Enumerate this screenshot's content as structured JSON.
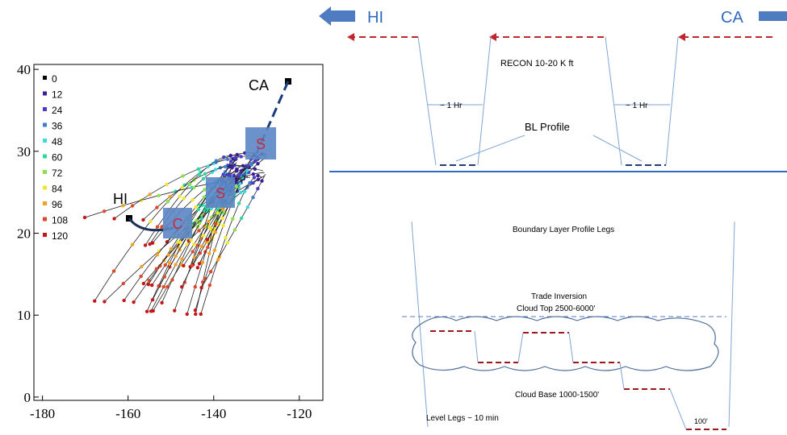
{
  "trajectory_plot": {
    "xlim": [
      -182,
      -114.5
    ],
    "ylim": [
      -0.4,
      40.6
    ],
    "xticks": [
      -180,
      -160,
      -140,
      -120
    ],
    "yticks": [
      0,
      10,
      20,
      30,
      40
    ],
    "legend": [
      {
        "label": "0",
        "color": "#000000"
      },
      {
        "label": "12",
        "color": "#3a1e9a"
      },
      {
        "label": "24",
        "color": "#4b3cc8"
      },
      {
        "label": "36",
        "color": "#3f7fd0"
      },
      {
        "label": "48",
        "color": "#3fd7e0"
      },
      {
        "label": "60",
        "color": "#30d6a0"
      },
      {
        "label": "72",
        "color": "#8ee04a"
      },
      {
        "label": "84",
        "color": "#f0e632"
      },
      {
        "label": "96",
        "color": "#f2a22a"
      },
      {
        "label": "108",
        "color": "#e0482a"
      },
      {
        "label": "120",
        "color": "#c41818"
      }
    ],
    "site_labels": [
      "HI",
      "CA"
    ],
    "box_labels": [
      "C",
      "S",
      "S"
    ]
  },
  "flight_profile": {
    "direction_labels": [
      "HI",
      "CA"
    ],
    "recon": "RECON  10-20 K ft",
    "hour_labels": [
      "~ 1 Hr",
      "~ 1 Hr"
    ],
    "bl_profile": "BL Profile",
    "legs_title": "Boundary Layer Profile Legs",
    "inversion": "Trade Inversion",
    "cloud_top": "Cloud Top  2500-6000'",
    "cloud_base": "Cloud Base  1000-1500'",
    "level_legs": "Level Legs ~ 10 min",
    "lowest_leg": "100'"
  }
}
